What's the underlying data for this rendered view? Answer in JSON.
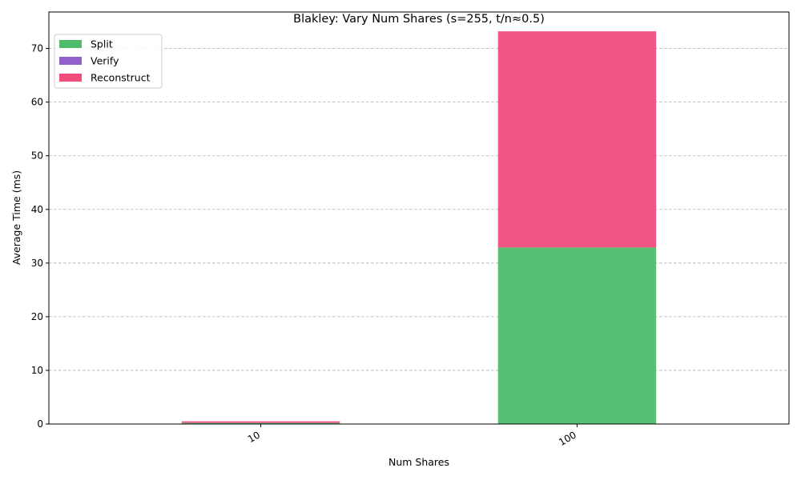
{
  "chart_data": {
    "type": "bar",
    "stacked": true,
    "title": "Blakley: Vary Num Shares (s=255, t/n≈0.5)",
    "xlabel": "Num Shares",
    "ylabel": "Average Time (ms)",
    "categories": [
      "10",
      "100"
    ],
    "series": [
      {
        "name": "Split",
        "color": "#4dbd6c",
        "values": [
          0.2,
          32.9
        ]
      },
      {
        "name": "Verify",
        "color": "#9060cc",
        "values": [
          0.0,
          0.0
        ]
      },
      {
        "name": "Reconstruct",
        "color": "#f04c7c",
        "values": [
          0.3,
          40.3
        ]
      }
    ],
    "ylim": [
      0,
      76.8
    ],
    "yticks": [
      0,
      10,
      20,
      30,
      40,
      50,
      60,
      70
    ],
    "grid": "y-dashed",
    "legend_position": "top-left"
  }
}
